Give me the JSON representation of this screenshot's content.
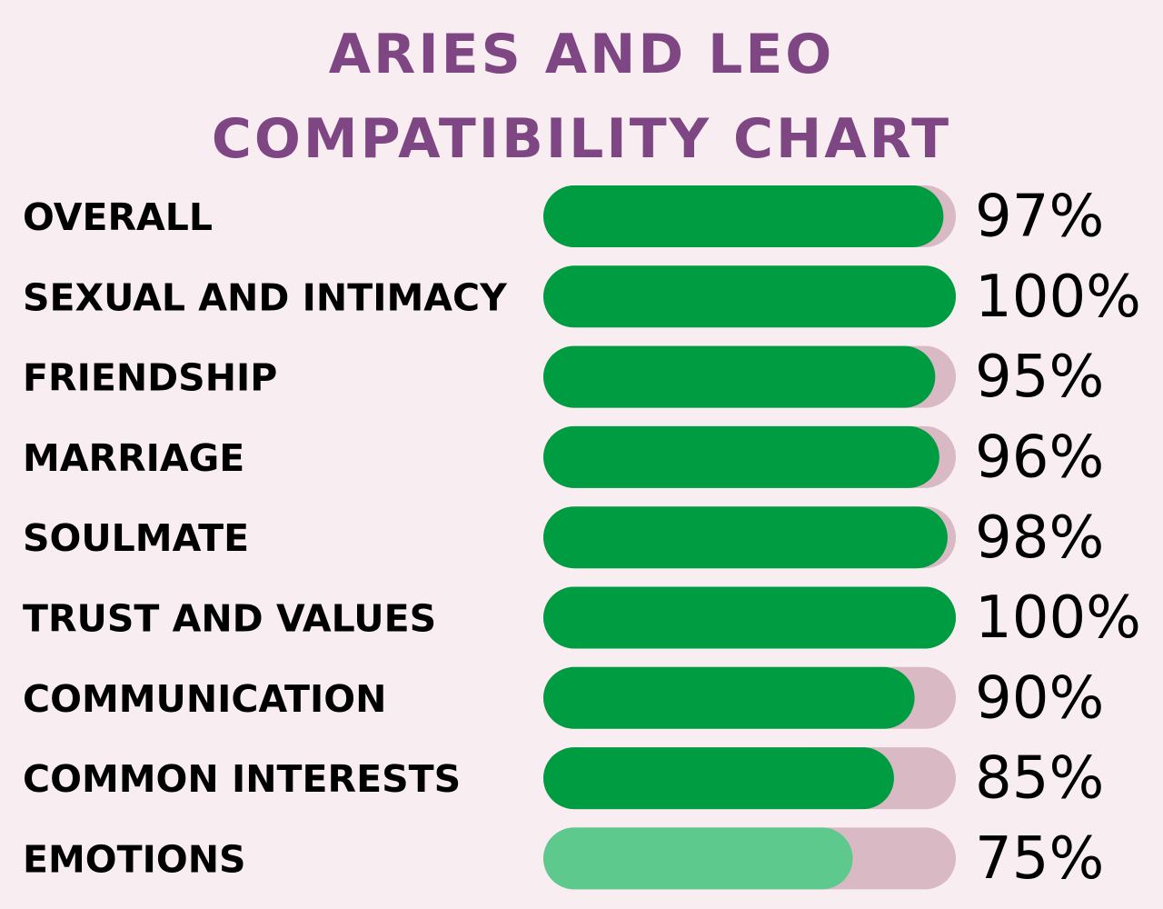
{
  "chart_data": {
    "type": "bar",
    "orientation": "horizontal",
    "title": "ARIES AND LEO COMPATIBILITY CHART",
    "categories": [
      "OVERALL",
      "SEXUAL AND INTIMACY",
      "FRIENDSHIP",
      "MARRIAGE",
      "SOULMATE",
      "TRUST AND VALUES",
      "COMMUNICATION",
      "COMMON INTERESTS",
      "EMOTIONS"
    ],
    "values": [
      97,
      100,
      95,
      96,
      98,
      100,
      90,
      85,
      75
    ],
    "value_labels": [
      "97%",
      "100%",
      "95%",
      "96%",
      "98%",
      "100%",
      "90%",
      "85%",
      "75%"
    ],
    "colors": [
      "#009c41",
      "#009c41",
      "#009c41",
      "#009c41",
      "#009c41",
      "#009c41",
      "#009c41",
      "#009c41",
      "#5ec98d"
    ],
    "track_color": "#d9b9c4",
    "xlim": [
      0,
      100
    ]
  }
}
